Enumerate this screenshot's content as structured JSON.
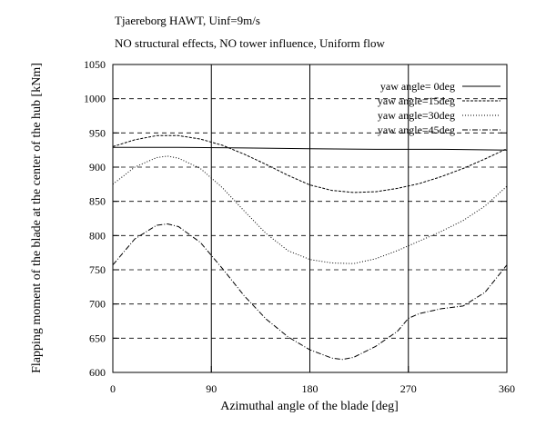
{
  "chart_data": {
    "type": "line",
    "title": "Tjaereborg HAWT, Uinf=9m/s",
    "subtitle": "NO structural effects, NO tower influence, Uniform flow",
    "xlabel": "Azimuthal angle of the blade [deg]",
    "ylabel": "Flapping moment of the blade at the center of the hub [kNm]",
    "xlim": [
      0,
      360
    ],
    "ylim": [
      600,
      1050
    ],
    "xticks": [
      0,
      90,
      180,
      270,
      360
    ],
    "yticks": [
      600,
      650,
      700,
      750,
      800,
      850,
      900,
      950,
      1000,
      1050
    ],
    "grid": "vertical lines at x ticks, dashed horizontal lines at y ticks",
    "legend_position": "top-right",
    "series": [
      {
        "name": "yaw angle= 0deg",
        "style": "solid",
        "x": [
          0,
          60,
          120,
          180,
          240,
          300,
          360
        ],
        "y": [
          929,
          929,
          928,
          927,
          926,
          926,
          925
        ]
      },
      {
        "name": "yaw angle=15deg",
        "style": "dash-fine",
        "x": [
          0,
          20,
          40,
          60,
          80,
          100,
          120,
          140,
          160,
          180,
          200,
          220,
          240,
          260,
          280,
          300,
          320,
          340,
          360
        ],
        "y": [
          930,
          940,
          946,
          946,
          941,
          932,
          919,
          904,
          888,
          874,
          866,
          863,
          864,
          869,
          876,
          886,
          898,
          912,
          927
        ]
      },
      {
        "name": "yaw angle=30deg",
        "style": "dot",
        "x": [
          0,
          20,
          40,
          50,
          60,
          80,
          100,
          120,
          140,
          160,
          180,
          200,
          220,
          240,
          260,
          280,
          300,
          320,
          340,
          360
        ],
        "y": [
          875,
          900,
          914,
          916,
          913,
          898,
          870,
          836,
          803,
          778,
          765,
          760,
          759,
          766,
          778,
          792,
          806,
          822,
          843,
          872
        ]
      },
      {
        "name": "yaw angle=45deg",
        "style": "dash-dot",
        "x": [
          0,
          20,
          40,
          50,
          60,
          80,
          100,
          120,
          140,
          160,
          180,
          200,
          210,
          220,
          240,
          260,
          270,
          280,
          300,
          320,
          340,
          360
        ],
        "y": [
          757,
          795,
          815,
          817,
          813,
          790,
          752,
          712,
          678,
          652,
          633,
          621,
          619,
          622,
          638,
          660,
          679,
          686,
          693,
          697,
          717,
          757
        ]
      }
    ]
  }
}
